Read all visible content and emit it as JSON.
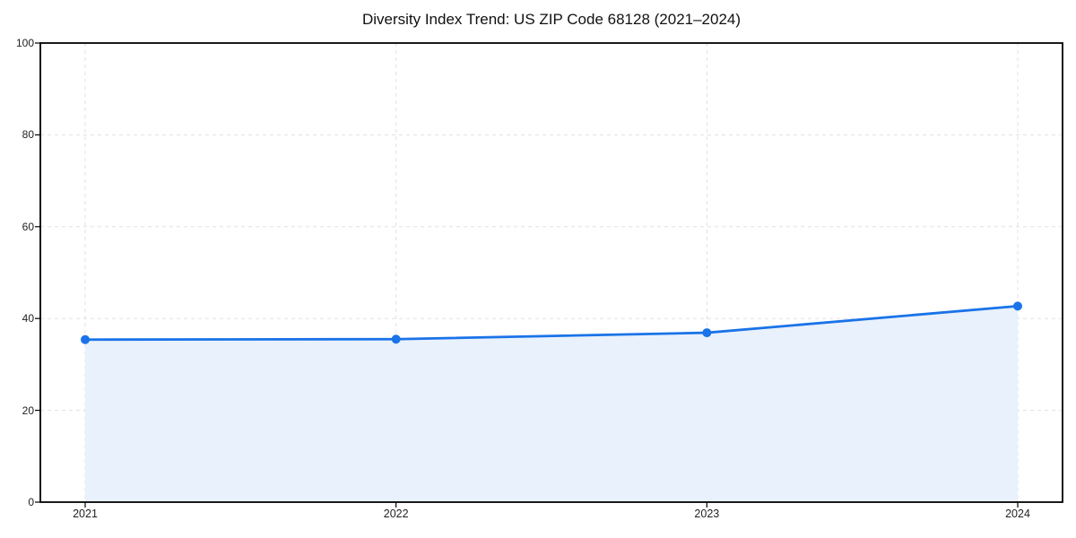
{
  "chart_data": {
    "type": "line",
    "title": "Diversity Index Trend: US ZIP Code 68128 (2021–2024)",
    "categories": [
      "2021",
      "2022",
      "2023",
      "2024"
    ],
    "values": [
      35.4,
      35.5,
      36.9,
      42.7
    ],
    "xlabel": "",
    "ylabel": "",
    "ylim": [
      0,
      100
    ],
    "yticks": [
      0,
      20,
      40,
      60,
      80,
      100
    ],
    "grid": "dashed",
    "legend_position": "none",
    "marker": "circle",
    "area_fill": true,
    "colors": {
      "line": "#1a73e8",
      "marker": "#1a73e8",
      "fill": "#e8f1fc",
      "grid": "#e0e0e0",
      "spine": "#000000",
      "tick_label": "#222222",
      "background": "#ffffff"
    }
  }
}
